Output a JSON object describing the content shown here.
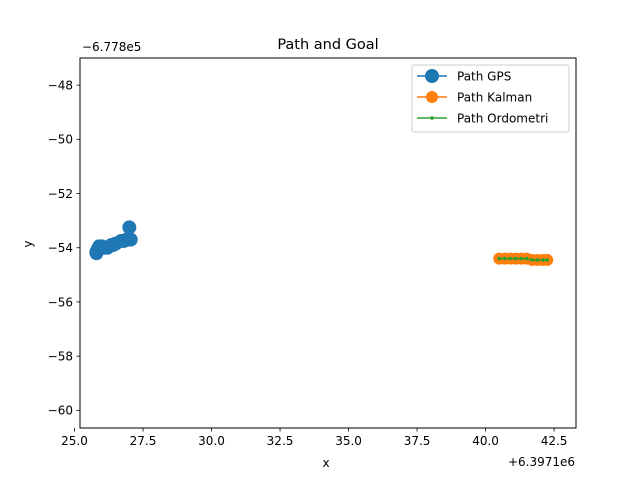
{
  "chart_data": {
    "type": "line",
    "title": "Path and Goal",
    "xlabel": "x",
    "ylabel": "y",
    "x_offset_label": "+6.3971e6",
    "y_offset_label": "−6.778e5",
    "xlim": [
      25.2,
      43.3
    ],
    "ylim": [
      -60.65,
      -47.0
    ],
    "x_ticks": [
      25.0,
      27.5,
      30.0,
      32.5,
      35.0,
      37.5,
      40.0,
      42.5
    ],
    "x_tick_labels": [
      "25.0",
      "27.5",
      "30.0",
      "32.5",
      "35.0",
      "37.5",
      "40.0",
      "42.5"
    ],
    "y_ticks": [
      -48,
      -50,
      -52,
      -54,
      -56,
      -58,
      -60
    ],
    "y_tick_labels": [
      "−48",
      "−50",
      "−52",
      "−54",
      "−56",
      "−58",
      "−60"
    ],
    "grid": false,
    "legend_position": "top-right",
    "series": [
      {
        "name": "Path GPS",
        "color": "#1f77b4",
        "marker": "circle-large",
        "x": [
          25.8,
          25.85,
          25.9,
          26.0,
          26.2,
          26.35,
          26.5,
          26.7,
          26.9,
          27.05,
          27.0,
          26.8,
          26.4,
          26.1,
          25.9,
          25.8
        ],
        "y": [
          -54.2,
          -54.05,
          -53.95,
          -53.95,
          -54.0,
          -53.9,
          -53.85,
          -53.75,
          -53.7,
          -53.7,
          -53.25,
          -53.75,
          -53.9,
          -54.0,
          -54.05,
          -54.15
        ]
      },
      {
        "name": "Path Kalman",
        "color": "#ff7f0e",
        "marker": "circle-medium",
        "x": [
          40.5,
          40.7,
          40.9,
          41.1,
          41.3,
          41.5,
          41.7,
          41.9,
          42.1,
          42.25
        ],
        "y": [
          -54.4,
          -54.4,
          -54.4,
          -54.4,
          -54.4,
          -54.4,
          -54.45,
          -54.45,
          -54.45,
          -54.45
        ]
      },
      {
        "name": "Path Ordometri",
        "color": "#2ca02c",
        "marker": "point-small",
        "x": [
          40.5,
          40.7,
          40.9,
          41.1,
          41.3,
          41.5,
          41.7,
          41.9,
          42.1,
          42.25
        ],
        "y": [
          -54.4,
          -54.4,
          -54.4,
          -54.4,
          -54.4,
          -54.4,
          -54.45,
          -54.45,
          -54.45,
          -54.45
        ]
      }
    ]
  }
}
